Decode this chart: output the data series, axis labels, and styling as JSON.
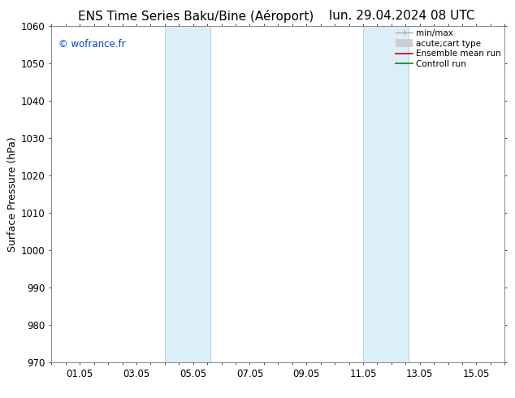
{
  "title_left": "ENS Time Series Baku/Bine (Aéroport)",
  "title_right": "lun. 29.04.2024 08 UTC",
  "ylabel": "Surface Pressure (hPa)",
  "ylim": [
    970,
    1060
  ],
  "yticks": [
    970,
    980,
    990,
    1000,
    1010,
    1020,
    1030,
    1040,
    1050,
    1060
  ],
  "xlim": [
    0,
    16
  ],
  "xtick_labels": [
    "01.05",
    "03.05",
    "05.05",
    "07.05",
    "09.05",
    "11.05",
    "13.05",
    "15.05"
  ],
  "xtick_positions": [
    1,
    3,
    5,
    7,
    9,
    11,
    13,
    15
  ],
  "shaded_bands": [
    {
      "xmin": 4.0,
      "xmax": 5.6,
      "color": "#dceef8"
    },
    {
      "xmin": 11.0,
      "xmax": 12.6,
      "color": "#dceef8"
    }
  ],
  "band_edge_color": "#b8d4e8",
  "band_edge_lw": 0.8,
  "copyright_text": "© wofrance.fr",
  "copyright_color": "#0044cc",
  "background_color": "#ffffff",
  "legend_minmax_color": "#aaaaaa",
  "legend_carttype_color": "#cccccc",
  "legend_ensemble_color": "#cc0000",
  "legend_controll_color": "#008800",
  "spine_color": "#888888",
  "spine_lw": 0.7,
  "title_fontsize": 11,
  "ylabel_fontsize": 9,
  "tick_fontsize": 8.5,
  "copyright_fontsize": 8.5,
  "legend_fontsize": 7.5
}
